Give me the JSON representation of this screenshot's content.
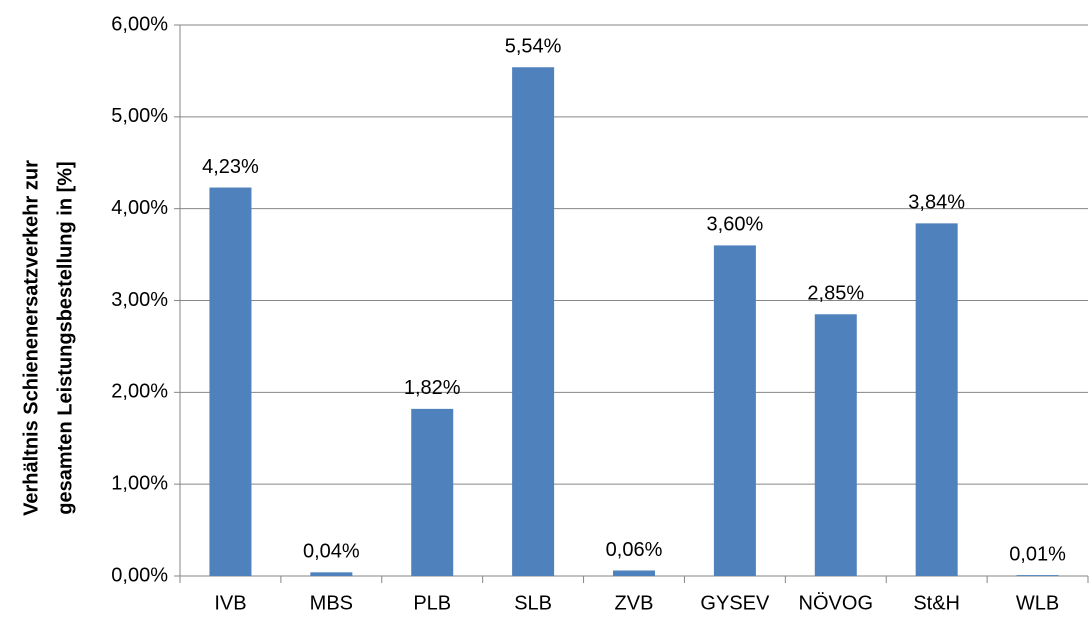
{
  "chart_data": {
    "type": "bar",
    "ylabel": [
      "Verhältnis Schienenersatzverkehr zur",
      "gesamten Leistungsbestellung in [%]"
    ],
    "categories": [
      "IVB",
      "MBS",
      "PLB",
      "SLB",
      "ZVB",
      "GYSEV",
      "NÖVOG",
      "St&H",
      "WLB"
    ],
    "values": [
      4.23,
      0.04,
      1.82,
      5.54,
      0.06,
      3.6,
      2.85,
      3.84,
      0.01
    ],
    "value_labels": [
      "4,23%",
      "0,04%",
      "1,82%",
      "5,54%",
      "0,06%",
      "3,60%",
      "2,85%",
      "3,84%",
      "0,01%"
    ],
    "color": "#4f81bd",
    "ylim": [
      0,
      6
    ],
    "yticks": [
      {
        "value": 0,
        "label": "0,00%"
      },
      {
        "value": 1,
        "label": "1,00%"
      },
      {
        "value": 2,
        "label": "2,00%"
      },
      {
        "value": 3,
        "label": "3,00%"
      },
      {
        "value": 4,
        "label": "4,00%"
      },
      {
        "value": 5,
        "label": "5,00%"
      },
      {
        "value": 6,
        "label": "6,00%"
      }
    ],
    "grid": true
  }
}
